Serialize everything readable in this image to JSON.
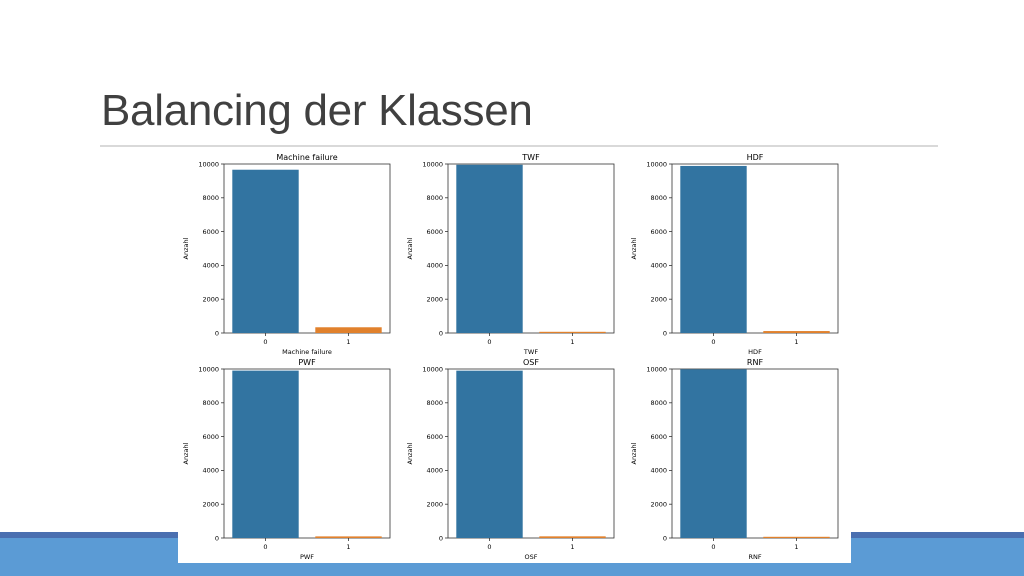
{
  "slide": {
    "title": "Balancing der Klassen",
    "colors": {
      "title": "#404040",
      "rule": "#d9d9d9",
      "footer_dark": "#4a6fb0",
      "footer": "#5b9bd5"
    }
  },
  "chart_data": [
    {
      "type": "bar",
      "title": "Machine failure",
      "xlabel": "Machine failure",
      "ylabel": "Anzahl",
      "categories": [
        "0",
        "1"
      ],
      "values": [
        9661,
        339
      ],
      "ylim": [
        0,
        10000
      ],
      "yticks": [
        "0",
        "2000",
        "4000",
        "6000",
        "8000",
        "10000"
      ],
      "colors": [
        "#3274a1",
        "#e1812c"
      ]
    },
    {
      "type": "bar",
      "title": "TWF",
      "xlabel": "TWF",
      "ylabel": "Anzahl",
      "categories": [
        "0",
        "1"
      ],
      "values": [
        9954,
        46
      ],
      "ylim": [
        0,
        10000
      ],
      "yticks": [
        "0",
        "2000",
        "4000",
        "6000",
        "8000",
        "10000"
      ],
      "colors": [
        "#3274a1",
        "#e1812c"
      ]
    },
    {
      "type": "bar",
      "title": "HDF",
      "xlabel": "HDF",
      "ylabel": "Anzahl",
      "categories": [
        "0",
        "1"
      ],
      "values": [
        9885,
        115
      ],
      "ylim": [
        0,
        10000
      ],
      "yticks": [
        "0",
        "2000",
        "4000",
        "6000",
        "8000",
        "10000"
      ],
      "colors": [
        "#3274a1",
        "#e1812c"
      ]
    },
    {
      "type": "bar",
      "title": "PWF",
      "xlabel": "PWF",
      "ylabel": "Anzahl",
      "categories": [
        "0",
        "1"
      ],
      "values": [
        9905,
        95
      ],
      "ylim": [
        0,
        10000
      ],
      "yticks": [
        "0",
        "2000",
        "4000",
        "6000",
        "8000",
        "10000"
      ],
      "colors": [
        "#3274a1",
        "#e1812c"
      ]
    },
    {
      "type": "bar",
      "title": "OSF",
      "xlabel": "OSF",
      "ylabel": "Anzahl",
      "categories": [
        "0",
        "1"
      ],
      "values": [
        9902,
        98
      ],
      "ylim": [
        0,
        10000
      ],
      "yticks": [
        "0",
        "2000",
        "4000",
        "6000",
        "8000",
        "10000"
      ],
      "colors": [
        "#3274a1",
        "#e1812c"
      ]
    },
    {
      "type": "bar",
      "title": "RNF",
      "xlabel": "RNF",
      "ylabel": "Anzahl",
      "categories": [
        "0",
        "1"
      ],
      "values": [
        9981,
        19
      ],
      "ylim": [
        0,
        10000
      ],
      "yticks": [
        "0",
        "2000",
        "4000",
        "6000",
        "8000",
        "10000"
      ],
      "colors": [
        "#3274a1",
        "#e1812c"
      ]
    }
  ]
}
